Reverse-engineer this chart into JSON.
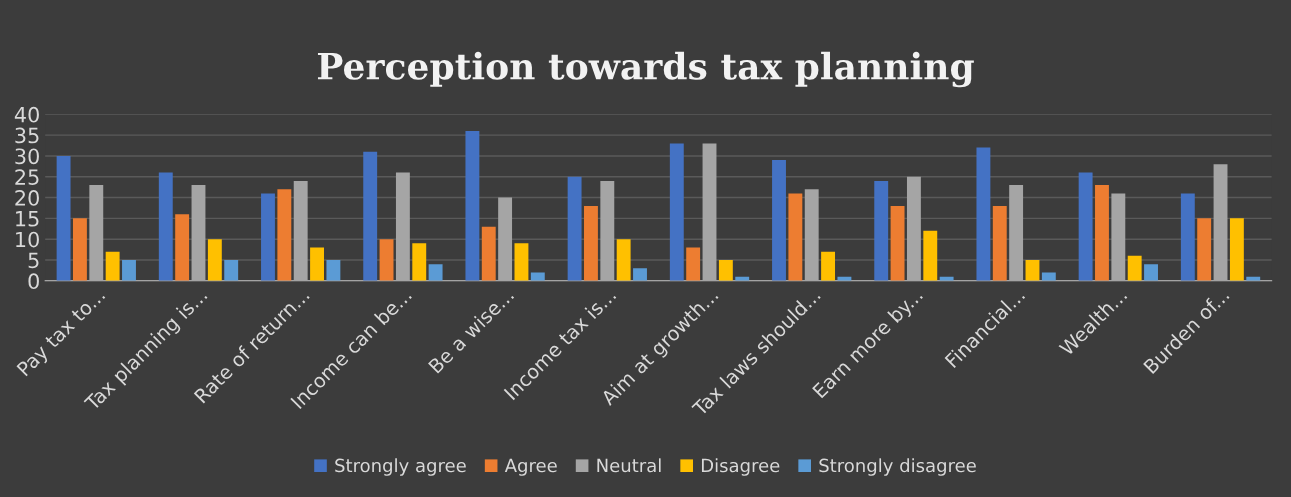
{
  "chart_data": {
    "type": "bar",
    "title": "Perception towards tax planning",
    "categories": [
      "Pay tax to...",
      "Tax planning is...",
      "Rate of return...",
      "Income can be...",
      "Be a wise...",
      "Income tax is...",
      "Aim at growth...",
      "Tax laws should...",
      "Earn more by...",
      "Financial...",
      "Wealth...",
      "Burden of..."
    ],
    "series": [
      {
        "name": "Strongly agree",
        "color": "#4472c4",
        "values": [
          30,
          26,
          21,
          31,
          36,
          25,
          33,
          29,
          24,
          32,
          26,
          21
        ]
      },
      {
        "name": "Agree",
        "color": "#ed7d31",
        "values": [
          15,
          16,
          22,
          10,
          13,
          18,
          8,
          21,
          18,
          18,
          23,
          15
        ]
      },
      {
        "name": "Neutral",
        "color": "#a5a5a5",
        "values": [
          23,
          23,
          24,
          26,
          20,
          24,
          33,
          22,
          25,
          23,
          21,
          28
        ]
      },
      {
        "name": "Disagree",
        "color": "#ffc000",
        "values": [
          7,
          10,
          8,
          9,
          9,
          10,
          5,
          7,
          12,
          5,
          6,
          15
        ]
      },
      {
        "name": "Strongly disagree",
        "color": "#5b9bd5",
        "values": [
          5,
          5,
          5,
          4,
          2,
          3,
          1,
          1,
          1,
          2,
          4,
          1
        ]
      }
    ],
    "ylim": [
      0,
      40
    ],
    "yticks": [
      0,
      5,
      10,
      15,
      20,
      25,
      30,
      35,
      40
    ],
    "grid": "y",
    "legend": "bottom"
  }
}
